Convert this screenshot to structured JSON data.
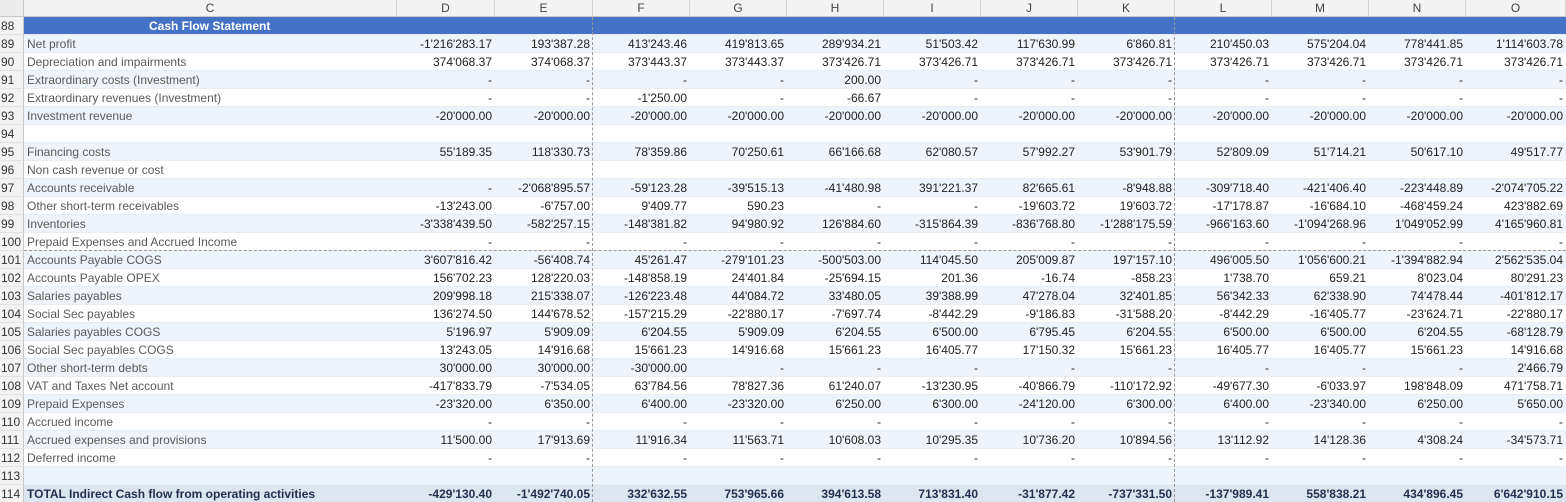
{
  "columns": [
    "C",
    "D",
    "E",
    "F",
    "G",
    "H",
    "I",
    "J",
    "K",
    "L",
    "M",
    "N",
    "O"
  ],
  "header": {
    "row": "88",
    "title": "Cash Flow Statement"
  },
  "rows": [
    {
      "n": "89",
      "label": "Net profit",
      "values": [
        "-1'216'283.17",
        "193'387.28",
        "413'243.46",
        "419'813.65",
        "289'934.21",
        "51'503.42",
        "117'630.99",
        "6'860.81",
        "210'450.03",
        "575'204.04",
        "778'441.85",
        "1'114'603.78"
      ]
    },
    {
      "n": "90",
      "label": "Depreciation and impairments",
      "values": [
        "374'068.37",
        "374'068.37",
        "373'443.37",
        "373'443.37",
        "373'426.71",
        "373'426.71",
        "373'426.71",
        "373'426.71",
        "373'426.71",
        "373'426.71",
        "373'426.71",
        "373'426.71"
      ]
    },
    {
      "n": "91",
      "label": "Extraordinary costs (Investment)",
      "values": [
        "-",
        "-",
        "-",
        "-",
        "200.00",
        "-",
        "-",
        "-",
        "-",
        "-",
        "-",
        "-"
      ]
    },
    {
      "n": "92",
      "label": "Extraordinary revenues (Investment)",
      "values": [
        "-",
        "-",
        "-1'250.00",
        "-",
        "-66.67",
        "-",
        "-",
        "-",
        "-",
        "-",
        "-",
        "-"
      ]
    },
    {
      "n": "93",
      "label": "Investment revenue",
      "values": [
        "-20'000.00",
        "-20'000.00",
        "-20'000.00",
        "-20'000.00",
        "-20'000.00",
        "-20'000.00",
        "-20'000.00",
        "-20'000.00",
        "-20'000.00",
        "-20'000.00",
        "-20'000.00",
        "-20'000.00"
      ]
    },
    {
      "n": "94",
      "label": "",
      "values": [
        "",
        "",
        "",
        "",
        "",
        "",
        "",
        "",
        "",
        "",
        "",
        ""
      ]
    },
    {
      "n": "95",
      "label": "Financing costs",
      "values": [
        "55'189.35",
        "118'330.73",
        "78'359.86",
        "70'250.61",
        "66'166.68",
        "62'080.57",
        "57'992.27",
        "53'901.79",
        "52'809.09",
        "51'714.21",
        "50'617.10",
        "49'517.77"
      ]
    },
    {
      "n": "96",
      "label": "Non cash revenue or cost",
      "values": [
        "",
        "",
        "",
        "",
        "",
        "",
        "",
        "",
        "",
        "",
        "",
        ""
      ]
    },
    {
      "n": "97",
      "label": "Accounts receivable",
      "values": [
        "-",
        "-2'068'895.57",
        "-59'123.28",
        "-39'515.13",
        "-41'480.98",
        "391'221.37",
        "82'665.61",
        "-8'948.88",
        "-309'718.40",
        "-421'406.40",
        "-223'448.89",
        "-2'074'705.22"
      ]
    },
    {
      "n": "98",
      "label": "Other short-term receivables",
      "values": [
        "-13'243.00",
        "-6'757.00",
        "9'409.77",
        "590.23",
        "-",
        "-",
        "-19'603.72",
        "19'603.72",
        "-17'178.87",
        "-16'684.10",
        "-468'459.24",
        "423'882.69"
      ]
    },
    {
      "n": "99",
      "label": "Inventories",
      "values": [
        "-3'338'439.50",
        "-582'257.15",
        "-148'381.82",
        "94'980.92",
        "126'884.60",
        "-315'864.39",
        "-836'768.80",
        "-1'288'175.59",
        "-966'163.60",
        "-1'094'268.96",
        "1'049'052.99",
        "4'165'960.81"
      ]
    },
    {
      "n": "100",
      "label": "Prepaid Expenses and Accrued Income",
      "values": [
        "-",
        "-",
        "-",
        "-",
        "-",
        "-",
        "-",
        "-",
        "-",
        "-",
        "-",
        "-"
      ]
    },
    {
      "n": "101",
      "label": "Accounts Payable COGS",
      "values": [
        "3'607'816.42",
        "-56'408.74",
        "45'261.47",
        "-279'101.23",
        "-500'503.00",
        "114'045.50",
        "205'009.87",
        "197'157.10",
        "496'005.50",
        "1'056'600.21",
        "-1'394'882.94",
        "2'562'535.04"
      ]
    },
    {
      "n": "102",
      "label": "Accounts Payable OPEX",
      "values": [
        "156'702.23",
        "128'220.03",
        "-148'858.19",
        "24'401.84",
        "-25'694.15",
        "201.36",
        "-16.74",
        "-858.23",
        "1'738.70",
        "659.21",
        "8'023.04",
        "80'291.23"
      ]
    },
    {
      "n": "103",
      "label": "Salaries payables",
      "values": [
        "209'998.18",
        "215'338.07",
        "-126'223.48",
        "44'084.72",
        "33'480.05",
        "39'388.99",
        "47'278.04",
        "32'401.85",
        "56'342.33",
        "62'338.90",
        "74'478.44",
        "-401'812.17"
      ]
    },
    {
      "n": "104",
      "label": "Social Sec payables",
      "values": [
        "136'274.50",
        "144'678.52",
        "-157'215.29",
        "-22'880.17",
        "-7'697.74",
        "-8'442.29",
        "-9'186.83",
        "-31'588.20",
        "-8'442.29",
        "-16'405.77",
        "-23'624.71",
        "-22'880.17"
      ]
    },
    {
      "n": "105",
      "label": "Salaries payables COGS",
      "values": [
        "5'196.97",
        "5'909.09",
        "6'204.55",
        "5'909.09",
        "6'204.55",
        "6'500.00",
        "6'795.45",
        "6'204.55",
        "6'500.00",
        "6'500.00",
        "6'204.55",
        "-68'128.79"
      ]
    },
    {
      "n": "106",
      "label": "Social Sec payables COGS",
      "values": [
        "13'243.05",
        "14'916.68",
        "15'661.23",
        "14'916.68",
        "15'661.23",
        "16'405.77",
        "17'150.32",
        "15'661.23",
        "16'405.77",
        "16'405.77",
        "15'661.23",
        "14'916.68"
      ]
    },
    {
      "n": "107",
      "label": "Other short-term debts",
      "values": [
        "30'000.00",
        "30'000.00",
        "-30'000.00",
        "-",
        "-",
        "-",
        "-",
        "-",
        "-",
        "-",
        "-",
        "2'466.79"
      ]
    },
    {
      "n": "108",
      "label": "VAT and Taxes Net account",
      "values": [
        "-417'833.79",
        "-7'534.05",
        "63'784.56",
        "78'827.36",
        "61'240.07",
        "-13'230.95",
        "-40'866.79",
        "-110'172.92",
        "-49'677.30",
        "-6'033.97",
        "198'848.09",
        "471'758.71"
      ]
    },
    {
      "n": "109",
      "label": "Prepaid Expenses",
      "values": [
        "-23'320.00",
        "6'350.00",
        "6'400.00",
        "-23'320.00",
        "6'250.00",
        "6'300.00",
        "-24'120.00",
        "6'300.00",
        "6'400.00",
        "-23'340.00",
        "6'250.00",
        "5'650.00"
      ]
    },
    {
      "n": "110",
      "label": "Accrued income",
      "values": [
        "-",
        "-",
        "-",
        "-",
        "-",
        "-",
        "-",
        "-",
        "-",
        "-",
        "-",
        "-"
      ]
    },
    {
      "n": "111",
      "label": "Accrued expenses and provisions",
      "values": [
        "11'500.00",
        "17'913.69",
        "11'916.34",
        "11'563.71",
        "10'608.03",
        "10'295.35",
        "10'736.20",
        "10'894.56",
        "13'112.92",
        "14'128.36",
        "4'308.24",
        "-34'573.71"
      ]
    },
    {
      "n": "112",
      "label": "Deferred income",
      "values": [
        "-",
        "-",
        "-",
        "-",
        "-",
        "-",
        "-",
        "-",
        "-",
        "-",
        "-",
        "-"
      ]
    },
    {
      "n": "113",
      "label": "",
      "values": [
        "",
        "",
        "",
        "",
        "",
        "",
        "",
        "",
        "",
        "",
        "",
        ""
      ]
    }
  ],
  "total": {
    "n": "114",
    "label": "TOTAL Indirect Cash flow from operating activities",
    "values": [
      "-429'130.40",
      "-1'492'740.05",
      "332'632.55",
      "753'965.66",
      "394'613.58",
      "713'831.40",
      "-31'877.42",
      "-737'331.50",
      "-137'989.41",
      "558'838.21",
      "434'896.45",
      "6'642'910.15"
    ]
  }
}
